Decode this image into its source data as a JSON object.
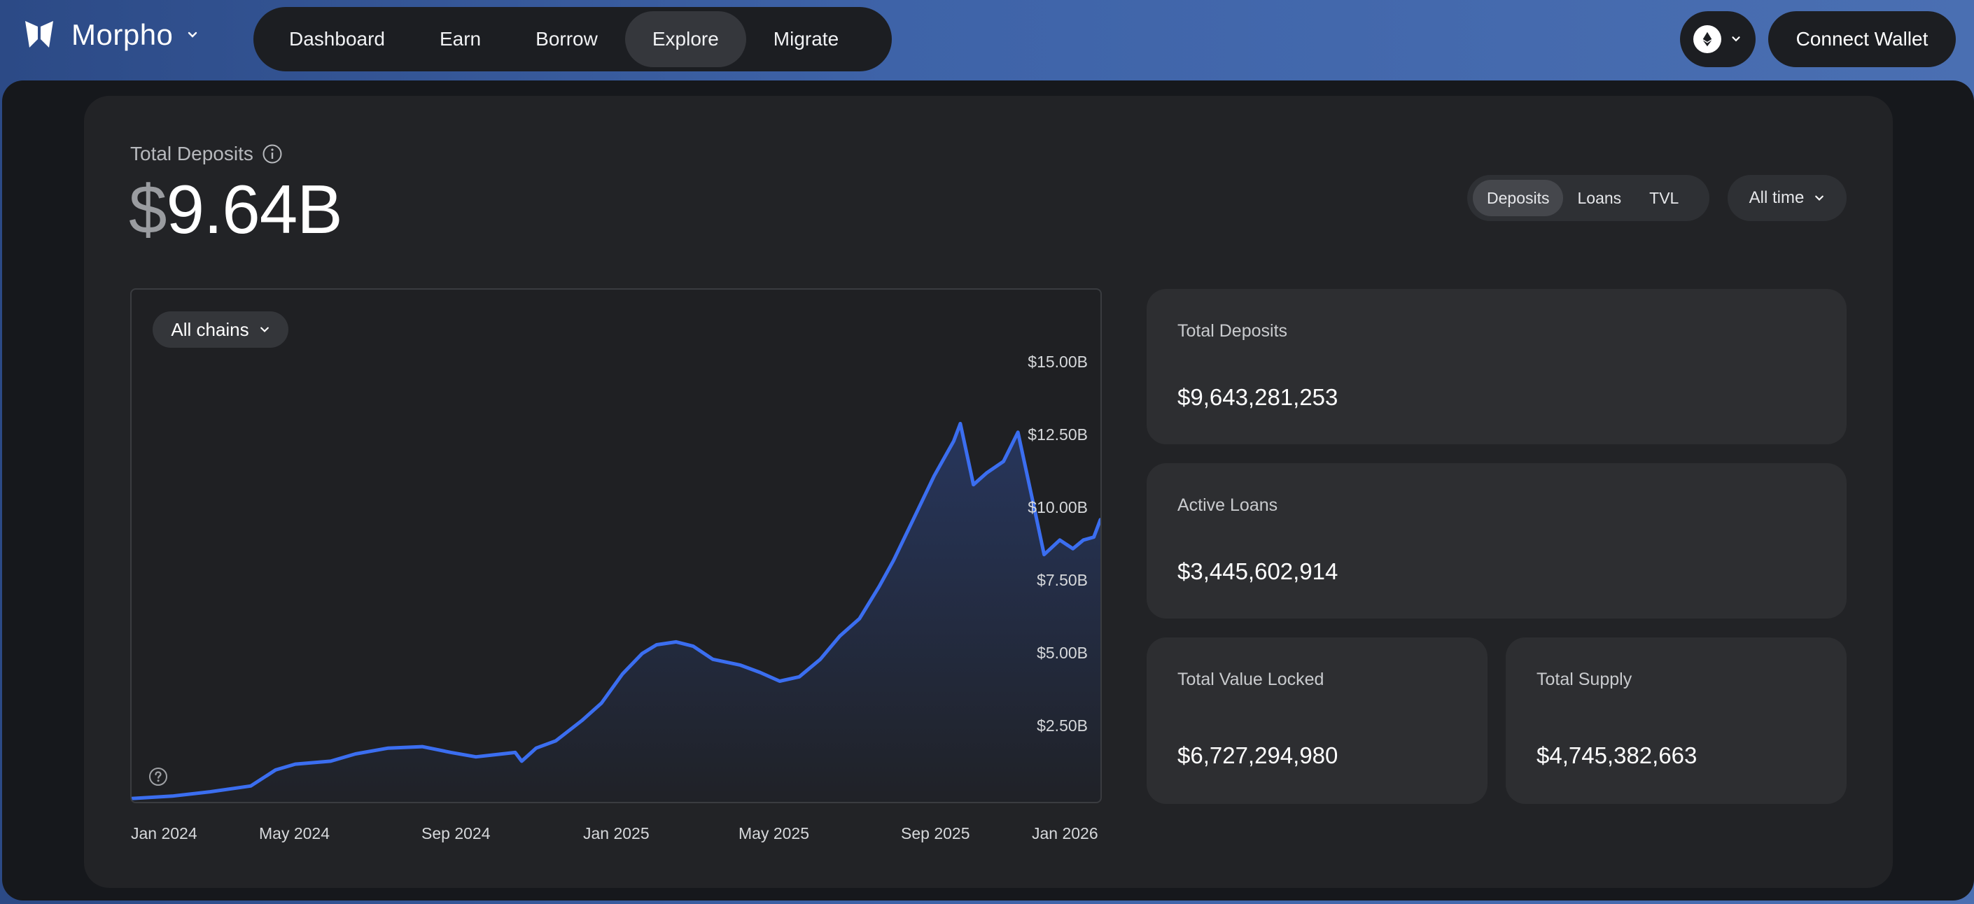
{
  "brand": {
    "name": "Morpho"
  },
  "nav": [
    {
      "label": "Dashboard",
      "active": false
    },
    {
      "label": "Earn",
      "active": false
    },
    {
      "label": "Borrow",
      "active": false
    },
    {
      "label": "Explore",
      "active": true
    },
    {
      "label": "Migrate",
      "active": false
    }
  ],
  "header": {
    "chain_icon": "ethereum-icon",
    "connect_label": "Connect Wallet"
  },
  "summary": {
    "label": "Total Deposits",
    "currency_symbol": "$",
    "value": "9.64B"
  },
  "toggle": {
    "options": [
      "Deposits",
      "Loans",
      "TVL"
    ],
    "selected": "Deposits"
  },
  "range": {
    "label": "All time"
  },
  "chart_filter": {
    "label": "All chains"
  },
  "chart_data": {
    "type": "area",
    "title": "",
    "xlabel": "",
    "ylabel": "",
    "x_ticks": [
      "Jan 2024",
      "May 2024",
      "Sep 2024",
      "Jan 2025",
      "May 2025",
      "Sep 2025",
      "Jan 2026"
    ],
    "y_ticks": [
      "$2.50B",
      "$5.00B",
      "$7.50B",
      "$10.00B",
      "$12.50B",
      "$15.00B"
    ],
    "ylim": [
      0,
      15
    ],
    "y_unit": "$B",
    "grid": false,
    "color": "#3b6ef0",
    "series": [
      {
        "values": [
          [
            "2024-01-01",
            0.02
          ],
          [
            "2024-02-01",
            0.1
          ],
          [
            "2024-03-01",
            0.25
          ],
          [
            "2024-04-01",
            0.45
          ],
          [
            "2024-04-20",
            1.0
          ],
          [
            "2024-05-05",
            1.2
          ],
          [
            "2024-06-01",
            1.3
          ],
          [
            "2024-06-20",
            1.55
          ],
          [
            "2024-07-15",
            1.75
          ],
          [
            "2024-08-10",
            1.8
          ],
          [
            "2024-09-01",
            1.6
          ],
          [
            "2024-09-20",
            1.45
          ],
          [
            "2024-10-10",
            1.55
          ],
          [
            "2024-10-20",
            1.6
          ],
          [
            "2024-10-25",
            1.3
          ],
          [
            "2024-11-05",
            1.75
          ],
          [
            "2024-11-20",
            2.0
          ],
          [
            "2024-12-10",
            2.7
          ],
          [
            "2024-12-25",
            3.3
          ],
          [
            "2025-01-10",
            4.3
          ],
          [
            "2025-01-25",
            5.0
          ],
          [
            "2025-02-05",
            5.3
          ],
          [
            "2025-02-20",
            5.4
          ],
          [
            "2025-03-05",
            5.25
          ],
          [
            "2025-03-20",
            4.8
          ],
          [
            "2025-04-10",
            4.6
          ],
          [
            "2025-04-25",
            4.35
          ],
          [
            "2025-05-10",
            4.05
          ],
          [
            "2025-05-25",
            4.2
          ],
          [
            "2025-06-10",
            4.8
          ],
          [
            "2025-06-25",
            5.6
          ],
          [
            "2025-07-10",
            6.2
          ],
          [
            "2025-07-25",
            7.3
          ],
          [
            "2025-08-05",
            8.2
          ],
          [
            "2025-08-20",
            9.6
          ],
          [
            "2025-09-05",
            11.1
          ],
          [
            "2025-09-20",
            12.3
          ],
          [
            "2025-09-25",
            12.9
          ],
          [
            "2025-10-05",
            10.8
          ],
          [
            "2025-10-15",
            11.2
          ],
          [
            "2025-10-28",
            11.6
          ],
          [
            "2025-11-08",
            12.6
          ],
          [
            "2025-11-20",
            10.1
          ],
          [
            "2025-11-28",
            8.4
          ],
          [
            "2025-12-10",
            8.9
          ],
          [
            "2025-12-20",
            8.6
          ],
          [
            "2025-12-28",
            8.9
          ],
          [
            "2026-01-05",
            9.0
          ],
          [
            "2026-01-10",
            9.6
          ]
        ]
      }
    ]
  },
  "cards": [
    {
      "label": "Total Deposits",
      "value": "$9,643,281,253"
    },
    {
      "label": "Active Loans",
      "value": "$3,445,602,914"
    },
    {
      "label": "Total Value Locked",
      "value": "$6,727,294,980"
    },
    {
      "label": "Total Supply",
      "value": "$4,745,382,663"
    }
  ]
}
